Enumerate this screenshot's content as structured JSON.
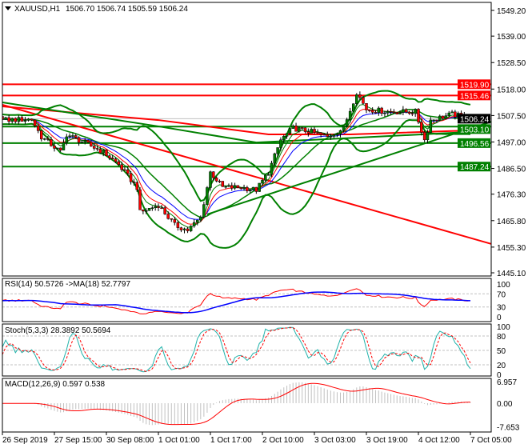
{
  "header": {
    "symbol": "XAUUSD,H1",
    "ohlc": "1506.70 1506.74 1505.59 1506.24"
  },
  "price_axis": [
    "1549.20",
    "1539.00",
    "1528.50",
    "1518.00",
    "1507.50",
    "1497.00",
    "1486.50",
    "1476.30",
    "1465.80",
    "1455.30",
    "1445.10"
  ],
  "level_tags": [
    {
      "value": "1519.90",
      "color": "#ff0000"
    },
    {
      "value": "1515.46",
      "color": "#ff0000"
    },
    {
      "value": "1506.24",
      "color": "#000000"
    },
    {
      "value": "1503.10",
      "color": "#008000"
    },
    {
      "value": "1496.56",
      "color": "#008000"
    },
    {
      "value": "1487.24",
      "color": "#008000"
    }
  ],
  "time_axis": [
    "26 Sep 2019",
    "27 Sep 15:00",
    "30 Sep 08:00",
    "1 Oct 01:00",
    "1 Oct 17:00",
    "2 Oct 10:00",
    "3 Oct 03:00",
    "3 Oct 19:00",
    "4 Oct 12:00",
    "7 Oct 05:00"
  ],
  "rsi": {
    "label": "RSI(14) 50.5726  ->MA(18) 52.7797",
    "axis": [
      "100",
      "70",
      "30",
      "0"
    ],
    "levels": [
      70,
      30
    ],
    "line_color": "#ff0000",
    "ma_color": "#0000ff"
  },
  "stoch": {
    "label": "Stoch(5,3,3) 28.3892 50.5694",
    "axis": [
      "100",
      "80",
      "50",
      "20",
      "0"
    ],
    "levels": [
      80,
      50,
      20
    ],
    "main_color": "#20b2aa",
    "signal_color": "#ff0000"
  },
  "macd": {
    "label": "MACD(12,26,9) 0.597 0.538",
    "axis": [
      "6.957",
      "0.00",
      "-7.653"
    ],
    "range": [
      -7.653,
      6.957
    ],
    "hist_color": "#c0c0c0",
    "signal_color": "#ff0000"
  },
  "chart_data": {
    "type": "candlestick",
    "symbol": "XAUUSD",
    "timeframe": "H1",
    "ylim": [
      1445.1,
      1549.2
    ],
    "close_points": [
      [
        "26 Sep 23:00",
        1505.7
      ],
      [
        "27 Sep 08:00",
        1506.0
      ],
      [
        "27 Sep 11:00",
        1499.0
      ],
      [
        "27 Sep 17:00",
        1493.0
      ],
      [
        "27 Sep 19:00",
        1500.0
      ],
      [
        "30 Sep 02:00",
        1496.0
      ],
      [
        "30 Sep 07:00",
        1493.0
      ],
      [
        "30 Sep 12:00",
        1488.0
      ],
      [
        "30 Sep 18:00",
        1479.0
      ],
      [
        "30 Sep 19:00",
        1469.0
      ],
      [
        "1 Oct 01:00",
        1472.0
      ],
      [
        "1 Oct 06:00",
        1464.0
      ],
      [
        "1 Oct 10:00",
        1462.0
      ],
      [
        "1 Oct 14:00",
        1467.0
      ],
      [
        "1 Oct 17:00",
        1485.0
      ],
      [
        "1 Oct 21:00",
        1479.0
      ],
      [
        "2 Oct 03:00",
        1479.0
      ],
      [
        "2 Oct 08:00",
        1478.0
      ],
      [
        "2 Oct 12:00",
        1485.0
      ],
      [
        "2 Oct 16:00",
        1497.8
      ],
      [
        "2 Oct 20:00",
        1502.5
      ],
      [
        "3 Oct 02:00",
        1501.0
      ],
      [
        "3 Oct 07:00",
        1499.0
      ],
      [
        "3 Oct 12:00",
        1502.5
      ],
      [
        "3 Oct 16:00",
        1516.8
      ],
      [
        "3 Oct 19:00",
        1510.0
      ],
      [
        "4 Oct 03:00",
        1508.9
      ],
      [
        "4 Oct 11:00",
        1509.0
      ],
      [
        "4 Oct 14:00",
        1497.8
      ],
      [
        "4 Oct 16:00",
        1505.7
      ],
      [
        "4 Oct 23:00",
        1508.0
      ],
      [
        "7 Oct 05:00",
        1506.24
      ]
    ],
    "horizontal_levels": [
      {
        "price": 1519.9,
        "color": "#ff0000"
      },
      {
        "price": 1515.46,
        "color": "#ff0000"
      },
      {
        "price": 1503.1,
        "color": "#008000"
      },
      {
        "price": 1496.56,
        "color": "#008000"
      },
      {
        "price": 1487.24,
        "color": "#008000"
      }
    ],
    "current_price": 1506.24,
    "trendlines": [
      {
        "from": [
          "26 Sep 23:00",
          1511.75
        ],
        "to": [
          "7 Oct 12:00",
          1456.5
        ],
        "color": "#ff0000"
      },
      {
        "from": [
          "1 Oct 16:00",
          1468.3
        ],
        "to": [
          "7 Oct 12:00",
          1505.1
        ],
        "color": "#008000"
      }
    ],
    "long_ma": [
      {
        "color": "#ff0000",
        "points": [
          [
            "26 Sep 23:00",
            1511.1
          ],
          [
            "1 Oct 01:00",
            1505.7
          ],
          [
            "2 Oct 12:00",
            1500.0
          ],
          [
            "3 Oct 14:00",
            1500.0
          ],
          [
            "7 Oct 05:00",
            1501.6
          ]
        ]
      },
      {
        "color": "#008000",
        "points": [
          [
            "26 Sep 23:00",
            1512.7
          ],
          [
            "1 Oct 01:00",
            1503.2
          ],
          [
            "2 Oct 08:00",
            1496.8
          ],
          [
            "3 Oct 16:00",
            1498.7
          ],
          [
            "7 Oct 05:00",
            1501.0
          ]
        ]
      }
    ],
    "bull_color": "#008000",
    "bear_color": "#ff0000",
    "ma_colors": [
      "#008000",
      "#ff0000",
      "#0000ff"
    ],
    "band_color": "#008000"
  }
}
